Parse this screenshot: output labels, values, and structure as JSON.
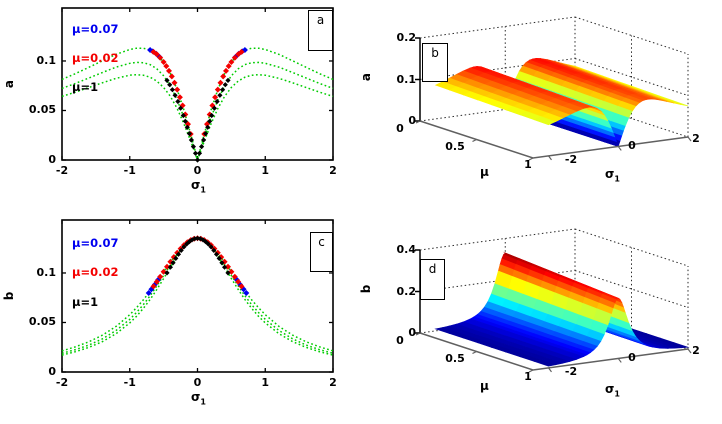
{
  "figure": {
    "background": "#ffffff"
  },
  "colors": {
    "curve_green": "#00CC00",
    "red": "#F40000",
    "blue": "#0000F0",
    "black": "#000000",
    "axis_2d": "#000000",
    "axis_3d_floor": "#606060",
    "grid_dotted": "#2a2a2a"
  },
  "chart_data": [
    {
      "id": "a",
      "type": "line",
      "panel_label": "a",
      "xlabel": "σ",
      "xlabel_sub": "1",
      "ylabel": "a",
      "xlim": [
        -2,
        2
      ],
      "ylim": [
        0,
        0.1535
      ],
      "grid": false,
      "xticks": [
        "-2",
        "-1",
        "0",
        "1",
        "2"
      ],
      "xtick_vals": [
        -2,
        -1,
        0,
        1,
        2
      ],
      "yticks": [
        "0",
        "0.05",
        "0.1"
      ],
      "ytick_vals": [
        0,
        0.05,
        0.1
      ],
      "legend": [
        {
          "label": "μ=0.07",
          "color": "blue"
        },
        {
          "label": "μ=0.02",
          "color": "red"
        },
        {
          "label": "μ=1",
          "color": "black"
        }
      ],
      "curves_note": "three dotted green curves, symmetric about sigma=0, double hump with V-dip to 0 at center",
      "x_half": [
        0,
        0.05,
        0.1,
        0.2,
        0.3,
        0.4,
        0.5,
        0.6,
        0.7,
        0.8,
        0.9,
        1,
        1.2,
        1.4,
        1.6,
        1.8,
        2
      ],
      "curves": [
        {
          "y_half": [
            0,
            0.0133,
            0.0263,
            0.0505,
            0.0711,
            0.0873,
            0.099,
            0.1067,
            0.1111,
            0.1129,
            0.1129,
            0.1116,
            0.1067,
            0.1003,
            0.0937,
            0.0873,
            0.0814
          ]
        },
        {
          "y_half": [
            0,
            0.0113,
            0.0223,
            0.043,
            0.0607,
            0.0748,
            0.0851,
            0.0921,
            0.0963,
            0.0983,
            0.0986,
            0.0977,
            0.0938,
            0.0885,
            0.0829,
            0.0774,
            0.0723
          ]
        },
        {
          "y_half": [
            0,
            0.0096,
            0.019,
            0.0367,
            0.0519,
            0.0642,
            0.0733,
            0.0797,
            0.0836,
            0.0856,
            0.0861,
            0.0856,
            0.0825,
            0.0781,
            0.0733,
            0.0686,
            0.0642
          ]
        }
      ],
      "markers": [
        {
          "series": "μ=0.07",
          "color": "blue",
          "symmetric": true,
          "x": [
            0.56,
            0.61,
            0.66,
            0.7
          ],
          "y": [
            0.104,
            0.1072,
            0.1097,
            0.1111
          ]
        },
        {
          "series": "μ=0.02",
          "color": "red",
          "symmetric": true,
          "x": [
            0.1,
            0.14,
            0.18,
            0.22,
            0.26,
            0.3,
            0.34,
            0.38,
            0.42,
            0.46,
            0.5,
            0.55,
            0.6,
            0.65
          ],
          "y": [
            0.0263,
            0.0363,
            0.0459,
            0.055,
            0.0634,
            0.0711,
            0.0781,
            0.0844,
            0.09,
            0.0948,
            0.099,
            0.1033,
            0.1067,
            0.1092
          ]
        },
        {
          "series": "μ=1",
          "color": "black",
          "symmetric": true,
          "x": [
            0,
            0.03,
            0.06,
            0.09,
            0.12,
            0.15,
            0.18,
            0.21,
            0.25,
            0.29,
            0.33,
            0.37,
            0.41,
            0.45
          ],
          "y": [
            0,
            0.0068,
            0.0135,
            0.0202,
            0.0267,
            0.033,
            0.0391,
            0.0449,
            0.0523,
            0.0591,
            0.0653,
            0.071,
            0.076,
            0.0804
          ]
        }
      ]
    },
    {
      "id": "b",
      "type": "surface",
      "panel_label": "b",
      "zlabel": "a",
      "mu_label": "μ",
      "sigma_label": "σ",
      "sigma_label_sub": "1",
      "zlim": [
        0,
        0.2
      ],
      "zticks": [
        "0",
        "0.1",
        "0.2"
      ],
      "ztick_vals": [
        0,
        0.1,
        0.2
      ],
      "mu_ticks": [
        "0",
        "0.5",
        "1"
      ],
      "mu_tick_vals": [
        0,
        0.5,
        1
      ],
      "sigma_ticks": [
        "-2",
        "0",
        "2"
      ],
      "sigma_tick_vals": [
        -2,
        0,
        2
      ],
      "colormap": "jet",
      "caxis_max": 0.13,
      "surface_note": "a(sigma,mu)=profile(|sigma|)*mu_scale(mu); two red ridges near sigma=±0.85, blue funnel to 0 at sigma=0",
      "sigma_half": [
        0,
        0.05,
        0.1,
        0.15,
        0.2,
        0.3,
        0.4,
        0.5,
        0.6,
        0.7,
        0.8,
        0.9,
        1,
        1.2,
        1.4,
        1.6,
        1.8,
        2
      ],
      "profile": [
        0,
        0.0133,
        0.0263,
        0.0388,
        0.0505,
        0.0711,
        0.0873,
        0.099,
        0.1067,
        0.1111,
        0.1129,
        0.1129,
        0.1116,
        0.1067,
        0.1003,
        0.0937,
        0.0873,
        0.0814
      ],
      "mu_scale": [
        1,
        0.99,
        0.98,
        0.97,
        0.96,
        0.95,
        0.94,
        0.93,
        0.92
      ]
    },
    {
      "id": "c",
      "type": "line",
      "panel_label": "c",
      "xlabel": "σ",
      "xlabel_sub": "1",
      "ylabel": "b",
      "xlim": [
        -2,
        2
      ],
      "ylim": [
        0,
        0.1535
      ],
      "grid": false,
      "xticks": [
        "-2",
        "-1",
        "0",
        "1",
        "2"
      ],
      "xtick_vals": [
        -2,
        -1,
        0,
        1,
        2
      ],
      "yticks": [
        "0",
        "0.05",
        "0.1"
      ],
      "ytick_vals": [
        0,
        0.05,
        0.1
      ],
      "legend": [
        {
          "label": "μ=0.07",
          "color": "blue"
        },
        {
          "label": "μ=0.02",
          "color": "red"
        },
        {
          "label": "μ=1",
          "color": "black"
        }
      ],
      "curves_note": "three dotted green bell curves peaking at b≈0.135 at sigma=0",
      "x_half": [
        0,
        0.05,
        0.1,
        0.2,
        0.3,
        0.4,
        0.5,
        0.6,
        0.7,
        0.8,
        0.9,
        1,
        1.2,
        1.4,
        1.6,
        1.8,
        2
      ],
      "curves": [
        {
          "y_half": [
            0.135,
            0.1346,
            0.1332,
            0.1282,
            0.1205,
            0.1113,
            0.1013,
            0.0912,
            0.0817,
            0.0728,
            0.0649,
            0.0579,
            0.0462,
            0.0374,
            0.0306,
            0.0254,
            0.0213
          ]
        },
        {
          "y_half": [
            0.135,
            0.1345,
            0.133,
            0.1272,
            0.1186,
            0.1083,
            0.0975,
            0.0869,
            0.077,
            0.068,
            0.0601,
            0.0532,
            0.042,
            0.0336,
            0.0273,
            0.0226,
            0.0189
          ]
        },
        {
          "y_half": [
            0.135,
            0.1344,
            0.1327,
            0.1263,
            0.1169,
            0.1058,
            0.0943,
            0.0833,
            0.0732,
            0.0642,
            0.0563,
            0.0496,
            0.0388,
            0.0308,
            0.0249,
            0.0205,
            0.0171
          ]
        }
      ],
      "markers": [
        {
          "series": "μ=0.07",
          "color": "blue",
          "symmetric": true,
          "x": [
            0.58,
            0.63,
            0.68,
            0.72
          ],
          "y": [
            0.0932,
            0.0883,
            0.0835,
            0.0798
          ]
        },
        {
          "series": "μ=0.02",
          "color": "red",
          "symmetric": true,
          "x": [
            0,
            0.05,
            0.1,
            0.15,
            0.2,
            0.25,
            0.3,
            0.35,
            0.4,
            0.45,
            0.5,
            0.55,
            0.6,
            0.65
          ],
          "y": [
            0.135,
            0.1346,
            0.1332,
            0.1311,
            0.1282,
            0.1246,
            0.1205,
            0.116,
            0.1113,
            0.1063,
            0.1013,
            0.0962,
            0.0912,
            0.0864
          ]
        },
        {
          "series": "μ=1",
          "color": "black",
          "symmetric": true,
          "x": [
            0,
            0.04,
            0.08,
            0.12,
            0.16,
            0.2,
            0.24,
            0.28,
            0.32,
            0.36,
            0.4,
            0.45
          ],
          "y": [
            0.135,
            0.1346,
            0.1335,
            0.1317,
            0.1293,
            0.1263,
            0.1228,
            0.1189,
            0.1147,
            0.1103,
            0.1058,
            0.1001
          ]
        }
      ]
    },
    {
      "id": "d",
      "type": "surface",
      "panel_label": "d",
      "zlabel": "b",
      "mu_label": "μ",
      "sigma_label": "σ",
      "sigma_label_sub": "1",
      "zlim": [
        0,
        0.4
      ],
      "zticks": [
        "0",
        "0.2",
        "0.4"
      ],
      "ztick_vals": [
        0,
        0.2,
        0.4
      ],
      "mu_ticks": [
        "0",
        "0.5",
        "1"
      ],
      "mu_tick_vals": [
        0,
        0.5,
        1
      ],
      "sigma_ticks": [
        "-2",
        "0",
        "2"
      ],
      "sigma_tick_vals": [
        -2,
        0,
        2
      ],
      "colormap": "jet",
      "caxis_max": 0.34,
      "surface_note": "b(sigma,mu)=profile(|sigma|)*mu_scale(mu); single sharp red ridge at sigma=0 (~0.33), dark blue elsewhere",
      "sigma_half": [
        0,
        0.05,
        0.1,
        0.15,
        0.2,
        0.3,
        0.4,
        0.5,
        0.6,
        0.7,
        0.8,
        0.9,
        1,
        1.2,
        1.4,
        1.6,
        1.8,
        2
      ],
      "profile": [
        0.33,
        0.3232,
        0.3046,
        0.2779,
        0.2475,
        0.1886,
        0.1414,
        0.107,
        0.0825,
        0.0649,
        0.0521,
        0.0426,
        0.0354,
        0.0254,
        0.019,
        0.0148,
        0.0118,
        0.0096
      ],
      "mu_scale": [
        1,
        0.985,
        0.97,
        0.955,
        0.94,
        0.925,
        0.91,
        0.895,
        0.88
      ]
    }
  ]
}
